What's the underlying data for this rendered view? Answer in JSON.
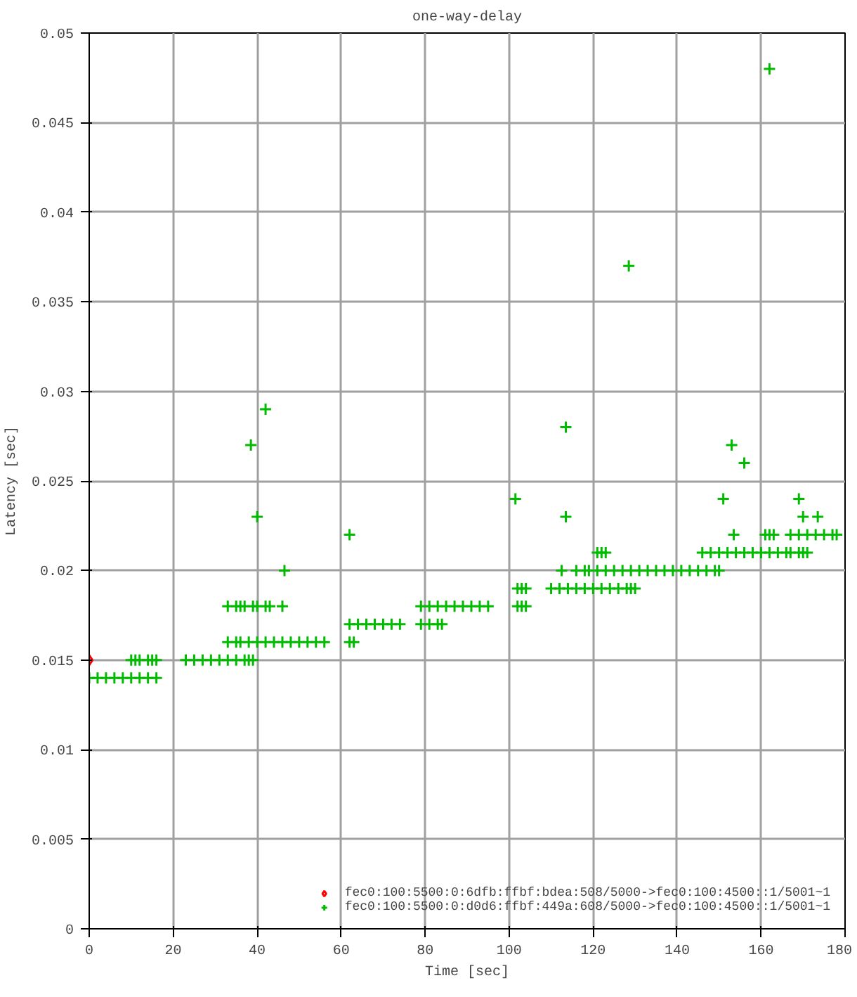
{
  "chart_data": {
    "type": "scatter",
    "title": "one-way-delay",
    "xlabel": "Time [sec]",
    "ylabel": "Latency [sec]",
    "xlim": [
      0,
      180
    ],
    "xticks": [
      0,
      20,
      40,
      60,
      80,
      100,
      120,
      140,
      160,
      180
    ],
    "ylim": [
      0,
      0.05
    ],
    "yticks": [
      0,
      0.005,
      0.01,
      0.015,
      0.02,
      0.025,
      0.03,
      0.035,
      0.04,
      0.045,
      0.05
    ],
    "grid": true,
    "legend": "bottom right",
    "series": [
      {
        "name": "fec0:100:5500:0:6dfb:ffbf:bdea:508/5000->fec0:100:4500::1/5001~1",
        "color": "#ff0000",
        "marker": "diamond",
        "x": [
          0
        ],
        "values": [
          0.015
        ]
      },
      {
        "name": "fec0:100:5500:0:d0d6:ffbf:449a:608/5000->fec0:100:4500::1/5001~1",
        "color": "#00bb00",
        "marker": "cross",
        "x": [
          0,
          2,
          4,
          6,
          8,
          10,
          12,
          14,
          16,
          10,
          11,
          12,
          14,
          15,
          16,
          23,
          25,
          27,
          29,
          31,
          33,
          35,
          37,
          38,
          39,
          33,
          35,
          36,
          38,
          40,
          42,
          44,
          46,
          48,
          50,
          52,
          54,
          56,
          33,
          35,
          36,
          37,
          39,
          40,
          42,
          43,
          46,
          38.5,
          42,
          40,
          46.5,
          62,
          62,
          63,
          62,
          64,
          66,
          68,
          70,
          72,
          74,
          79,
          81,
          83,
          85,
          87,
          89,
          91,
          93,
          95,
          79,
          81,
          83,
          84,
          101.5,
          102,
          103,
          104,
          102,
          103,
          104,
          113.5,
          113.5,
          112.5,
          110,
          112,
          114,
          116,
          118,
          120,
          122,
          124,
          126,
          128,
          129,
          130,
          116,
          118,
          119,
          121,
          123,
          125,
          127,
          129,
          131,
          133,
          135,
          137,
          139,
          141,
          143,
          145,
          147,
          149,
          150,
          121,
          122,
          123,
          128.5,
          146,
          148,
          150,
          152,
          154,
          156,
          158,
          160,
          162,
          164,
          166,
          167,
          169,
          170,
          171,
          151,
          153,
          156,
          153.5,
          161,
          162,
          163,
          167,
          169,
          171,
          173,
          175,
          177,
          178,
          169,
          170,
          173.5,
          162
        ],
        "values": [
          0.014,
          0.014,
          0.014,
          0.014,
          0.014,
          0.014,
          0.014,
          0.014,
          0.014,
          0.015,
          0.015,
          0.015,
          0.015,
          0.015,
          0.015,
          0.015,
          0.015,
          0.015,
          0.015,
          0.015,
          0.015,
          0.015,
          0.015,
          0.015,
          0.015,
          0.016,
          0.016,
          0.016,
          0.016,
          0.016,
          0.016,
          0.016,
          0.016,
          0.016,
          0.016,
          0.016,
          0.016,
          0.016,
          0.018,
          0.018,
          0.018,
          0.018,
          0.018,
          0.018,
          0.018,
          0.018,
          0.018,
          0.027,
          0.029,
          0.023,
          0.02,
          0.022,
          0.016,
          0.016,
          0.017,
          0.017,
          0.017,
          0.017,
          0.017,
          0.017,
          0.017,
          0.018,
          0.018,
          0.018,
          0.018,
          0.018,
          0.018,
          0.018,
          0.018,
          0.018,
          0.017,
          0.017,
          0.017,
          0.017,
          0.024,
          0.019,
          0.019,
          0.019,
          0.018,
          0.018,
          0.018,
          0.028,
          0.023,
          0.02,
          0.019,
          0.019,
          0.019,
          0.019,
          0.019,
          0.019,
          0.019,
          0.019,
          0.019,
          0.019,
          0.019,
          0.019,
          0.02,
          0.02,
          0.02,
          0.02,
          0.02,
          0.02,
          0.02,
          0.02,
          0.02,
          0.02,
          0.02,
          0.02,
          0.02,
          0.02,
          0.02,
          0.02,
          0.02,
          0.02,
          0.02,
          0.021,
          0.021,
          0.021,
          0.037,
          0.021,
          0.021,
          0.021,
          0.021,
          0.021,
          0.021,
          0.021,
          0.021,
          0.021,
          0.021,
          0.021,
          0.021,
          0.021,
          0.021,
          0.021,
          0.024,
          0.027,
          0.026,
          0.022,
          0.022,
          0.022,
          0.022,
          0.022,
          0.022,
          0.022,
          0.022,
          0.022,
          0.022,
          0.022,
          0.024,
          0.023,
          0.023,
          0.048
        ]
      }
    ]
  }
}
